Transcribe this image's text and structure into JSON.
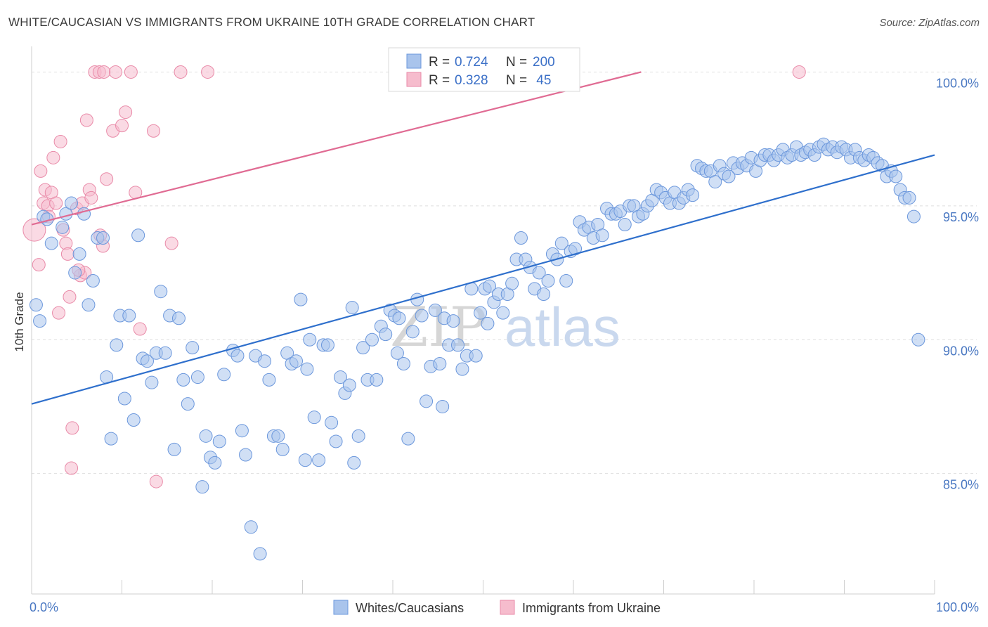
{
  "header": {
    "title": "WHITE/CAUCASIAN VS IMMIGRANTS FROM UKRAINE 10TH GRADE CORRELATION CHART",
    "source": "Source: ZipAtlas.com"
  },
  "watermark": {
    "zip": "ZIP",
    "atlas": "atlas"
  },
  "colors": {
    "blue_fill": "#a9c4ec",
    "blue_stroke": "#6b97dc",
    "blue_line": "#2e6fcc",
    "pink_fill": "#f6bccd",
    "pink_stroke": "#e98aa8",
    "pink_line": "#e06b93",
    "grid": "#dedede",
    "tick_label": "#4a78c2"
  },
  "legend": {
    "rows": [
      {
        "r_label": "R = ",
        "r_value": "0.724",
        "n_label": "N = ",
        "n_value": "200"
      },
      {
        "r_label": "R = ",
        "r_value": "0.328",
        "n_label": "N = ",
        "n_value": " 45"
      }
    ]
  },
  "bottom_legend": [
    {
      "label": "Whites/Caucasians"
    },
    {
      "label": "Immigrants from Ukraine"
    }
  ],
  "chart_data": {
    "type": "scatter",
    "title": "WHITE/CAUCASIAN VS IMMIGRANTS FROM UKRAINE 10TH GRADE CORRELATION CHART",
    "xlabel": "",
    "ylabel": "10th Grade",
    "xlim": [
      0,
      100
    ],
    "ylim": [
      80.5,
      100.8
    ],
    "x_tick_labels": [
      "0.0%",
      "100.0%"
    ],
    "y_ticks": [
      {
        "value": 85,
        "label": "85.0%"
      },
      {
        "value": 90,
        "label": "90.0%"
      },
      {
        "value": 95,
        "label": "95.0%"
      },
      {
        "value": 100,
        "label": "100.0%"
      }
    ],
    "grid": true,
    "legend_position": "top-center",
    "series": [
      {
        "name": "Whites/Caucasians",
        "R": 0.724,
        "N": 200,
        "trend": {
          "x": [
            0,
            100
          ],
          "y": [
            87.6,
            96.9
          ]
        },
        "points": [
          [
            0.5,
            91.3
          ],
          [
            0.9,
            90.7
          ],
          [
            1.3,
            94.6
          ],
          [
            1.7,
            94.5
          ],
          [
            2.2,
            93.6
          ],
          [
            3.4,
            94.2
          ],
          [
            3.8,
            94.7
          ],
          [
            4.4,
            95.1
          ],
          [
            4.8,
            92.5
          ],
          [
            5.3,
            93.2
          ],
          [
            5.8,
            94.7
          ],
          [
            6.3,
            91.3
          ],
          [
            6.8,
            92.2
          ],
          [
            7.3,
            93.8
          ],
          [
            7.9,
            93.8
          ],
          [
            8.3,
            88.6
          ],
          [
            8.8,
            86.3
          ],
          [
            9.4,
            89.8
          ],
          [
            9.8,
            90.9
          ],
          [
            10.3,
            87.8
          ],
          [
            10.8,
            90.9
          ],
          [
            11.3,
            87.0
          ],
          [
            11.8,
            93.9
          ],
          [
            12.3,
            89.3
          ],
          [
            12.8,
            89.2
          ],
          [
            13.3,
            88.4
          ],
          [
            13.8,
            89.5
          ],
          [
            14.3,
            91.8
          ],
          [
            14.8,
            89.5
          ],
          [
            15.3,
            90.9
          ],
          [
            15.8,
            85.9
          ],
          [
            16.3,
            90.8
          ],
          [
            16.8,
            88.5
          ],
          [
            17.3,
            87.6
          ],
          [
            17.8,
            89.7
          ],
          [
            18.4,
            88.6
          ],
          [
            18.9,
            84.5
          ],
          [
            19.3,
            86.4
          ],
          [
            19.8,
            85.6
          ],
          [
            20.3,
            85.4
          ],
          [
            20.8,
            86.2
          ],
          [
            21.3,
            88.7
          ],
          [
            22.3,
            89.6
          ],
          [
            22.8,
            89.4
          ],
          [
            23.3,
            86.6
          ],
          [
            23.7,
            85.7
          ],
          [
            24.3,
            83.0
          ],
          [
            24.8,
            89.4
          ],
          [
            25.3,
            82.0
          ],
          [
            25.8,
            89.2
          ],
          [
            26.3,
            88.5
          ],
          [
            26.8,
            86.4
          ],
          [
            27.3,
            86.4
          ],
          [
            27.8,
            85.9
          ],
          [
            28.3,
            89.5
          ],
          [
            28.8,
            89.1
          ],
          [
            29.3,
            89.2
          ],
          [
            29.8,
            91.5
          ],
          [
            30.3,
            85.5
          ],
          [
            30.8,
            90.0
          ],
          [
            31.3,
            87.1
          ],
          [
            31.8,
            85.5
          ],
          [
            32.3,
            89.8
          ],
          [
            32.8,
            89.8
          ],
          [
            33.2,
            86.9
          ],
          [
            33.7,
            86.2
          ],
          [
            34.2,
            88.6
          ],
          [
            34.7,
            88.0
          ],
          [
            35.2,
            88.3
          ],
          [
            35.7,
            85.4
          ],
          [
            36.2,
            86.4
          ],
          [
            36.7,
            89.7
          ],
          [
            37.2,
            88.5
          ],
          [
            37.7,
            90.0
          ],
          [
            38.2,
            88.5
          ],
          [
            38.7,
            90.5
          ],
          [
            39.2,
            90.2
          ],
          [
            39.7,
            91.1
          ],
          [
            40.2,
            90.9
          ],
          [
            40.7,
            90.8
          ],
          [
            41.2,
            89.1
          ],
          [
            41.7,
            86.3
          ],
          [
            42.2,
            90.3
          ],
          [
            42.7,
            91.5
          ],
          [
            43.2,
            90.9
          ],
          [
            43.7,
            87.7
          ],
          [
            44.2,
            89.0
          ],
          [
            44.7,
            91.1
          ],
          [
            45.2,
            89.1
          ],
          [
            45.7,
            90.8
          ],
          [
            46.2,
            89.8
          ],
          [
            46.7,
            90.7
          ],
          [
            47.2,
            89.8
          ],
          [
            47.7,
            88.9
          ],
          [
            48.2,
            89.4
          ],
          [
            48.7,
            91.9
          ],
          [
            49.2,
            89.4
          ],
          [
            49.7,
            91.0
          ],
          [
            50.2,
            91.9
          ],
          [
            50.7,
            92.0
          ],
          [
            51.2,
            91.4
          ],
          [
            51.7,
            91.7
          ],
          [
            52.2,
            91.0
          ],
          [
            52.7,
            91.7
          ],
          [
            53.2,
            92.1
          ],
          [
            53.7,
            93.0
          ],
          [
            54.2,
            93.8
          ],
          [
            54.7,
            93.0
          ],
          [
            55.2,
            92.7
          ],
          [
            55.7,
            91.9
          ],
          [
            56.2,
            92.5
          ],
          [
            56.7,
            91.7
          ],
          [
            57.2,
            92.2
          ],
          [
            57.7,
            93.2
          ],
          [
            58.2,
            93.0
          ],
          [
            58.7,
            93.6
          ],
          [
            59.2,
            92.2
          ],
          [
            59.7,
            93.3
          ],
          [
            60.2,
            93.4
          ],
          [
            60.7,
            94.4
          ],
          [
            61.2,
            94.1
          ],
          [
            61.7,
            94.2
          ],
          [
            62.2,
            93.8
          ],
          [
            62.7,
            94.3
          ],
          [
            63.2,
            93.9
          ],
          [
            63.7,
            94.9
          ],
          [
            64.2,
            94.7
          ],
          [
            64.7,
            94.7
          ],
          [
            65.2,
            94.8
          ],
          [
            65.7,
            94.3
          ],
          [
            66.2,
            95.0
          ],
          [
            66.7,
            95.0
          ],
          [
            67.2,
            94.6
          ],
          [
            67.7,
            94.7
          ],
          [
            68.2,
            95.0
          ],
          [
            68.7,
            95.2
          ],
          [
            69.2,
            95.6
          ],
          [
            69.7,
            95.5
          ],
          [
            70.2,
            95.3
          ],
          [
            70.7,
            95.1
          ],
          [
            71.2,
            95.5
          ],
          [
            71.7,
            95.1
          ],
          [
            72.2,
            95.3
          ],
          [
            72.7,
            95.6
          ],
          [
            73.2,
            95.4
          ],
          [
            73.7,
            96.5
          ],
          [
            74.2,
            96.4
          ],
          [
            74.7,
            96.3
          ],
          [
            75.2,
            96.3
          ],
          [
            75.7,
            95.9
          ],
          [
            76.2,
            96.5
          ],
          [
            76.7,
            96.2
          ],
          [
            77.2,
            96.1
          ],
          [
            77.7,
            96.6
          ],
          [
            78.2,
            96.4
          ],
          [
            78.7,
            96.6
          ],
          [
            79.2,
            96.5
          ],
          [
            79.7,
            96.8
          ],
          [
            80.2,
            96.3
          ],
          [
            80.7,
            96.7
          ],
          [
            81.2,
            96.9
          ],
          [
            81.7,
            96.9
          ],
          [
            82.2,
            96.7
          ],
          [
            82.7,
            96.9
          ],
          [
            83.2,
            97.1
          ],
          [
            83.7,
            96.8
          ],
          [
            84.2,
            96.9
          ],
          [
            84.7,
            97.2
          ],
          [
            85.2,
            96.9
          ],
          [
            85.7,
            97.0
          ],
          [
            86.2,
            97.1
          ],
          [
            86.7,
            96.9
          ],
          [
            87.2,
            97.2
          ],
          [
            87.7,
            97.3
          ],
          [
            88.2,
            97.1
          ],
          [
            88.7,
            97.2
          ],
          [
            89.2,
            97.0
          ],
          [
            89.7,
            97.2
          ],
          [
            90.2,
            97.1
          ],
          [
            90.7,
            96.8
          ],
          [
            91.2,
            97.1
          ],
          [
            91.7,
            96.8
          ],
          [
            92.2,
            96.7
          ],
          [
            92.7,
            96.9
          ],
          [
            93.2,
            96.8
          ],
          [
            93.7,
            96.6
          ],
          [
            94.2,
            96.5
          ],
          [
            94.7,
            96.1
          ],
          [
            95.2,
            96.3
          ],
          [
            95.7,
            96.1
          ],
          [
            96.2,
            95.6
          ],
          [
            96.7,
            95.3
          ],
          [
            97.2,
            95.3
          ],
          [
            97.7,
            94.6
          ],
          [
            98.2,
            90.0
          ],
          [
            30.5,
            88.9
          ],
          [
            35.5,
            91.2
          ],
          [
            40.5,
            89.5
          ],
          [
            45.5,
            87.5
          ],
          [
            50.5,
            90.6
          ]
        ]
      },
      {
        "name": "Immigrants from Ukraine",
        "R": 0.328,
        "N": 45,
        "trend": {
          "x": [
            0,
            67.5
          ],
          "y": [
            94.3,
            100.0
          ]
        },
        "points": [
          [
            0.3,
            94.1
          ],
          [
            0.8,
            92.8
          ],
          [
            1.0,
            96.3
          ],
          [
            1.3,
            95.1
          ],
          [
            1.5,
            95.6
          ],
          [
            1.8,
            95.0
          ],
          [
            2.2,
            95.5
          ],
          [
            2.4,
            96.8
          ],
          [
            2.7,
            95.1
          ],
          [
            3.0,
            91.0
          ],
          [
            3.2,
            97.4
          ],
          [
            3.5,
            94.1
          ],
          [
            3.8,
            93.6
          ],
          [
            4.0,
            93.2
          ],
          [
            4.2,
            91.6
          ],
          [
            4.5,
            86.7
          ],
          [
            4.4,
            85.2
          ],
          [
            5.0,
            94.9
          ],
          [
            5.4,
            92.4
          ],
          [
            5.6,
            95.1
          ],
          [
            5.9,
            92.5
          ],
          [
            6.1,
            98.2
          ],
          [
            6.4,
            95.6
          ],
          [
            6.6,
            95.3
          ],
          [
            7.0,
            100.0
          ],
          [
            7.5,
            100.0
          ],
          [
            7.9,
            93.5
          ],
          [
            8.0,
            100.0
          ],
          [
            8.3,
            96.0
          ],
          [
            9.0,
            97.8
          ],
          [
            9.3,
            100.0
          ],
          [
            10.0,
            98.0
          ],
          [
            10.4,
            98.5
          ],
          [
            11.0,
            100.0
          ],
          [
            11.5,
            95.5
          ],
          [
            12.0,
            90.4
          ],
          [
            13.5,
            97.8
          ],
          [
            13.8,
            84.7
          ],
          [
            15.5,
            93.6
          ],
          [
            16.5,
            100.0
          ],
          [
            19.5,
            100.0
          ],
          [
            85.0,
            100.0
          ],
          [
            1.9,
            94.6
          ],
          [
            7.6,
            93.9
          ],
          [
            5.2,
            92.6
          ]
        ]
      }
    ]
  }
}
